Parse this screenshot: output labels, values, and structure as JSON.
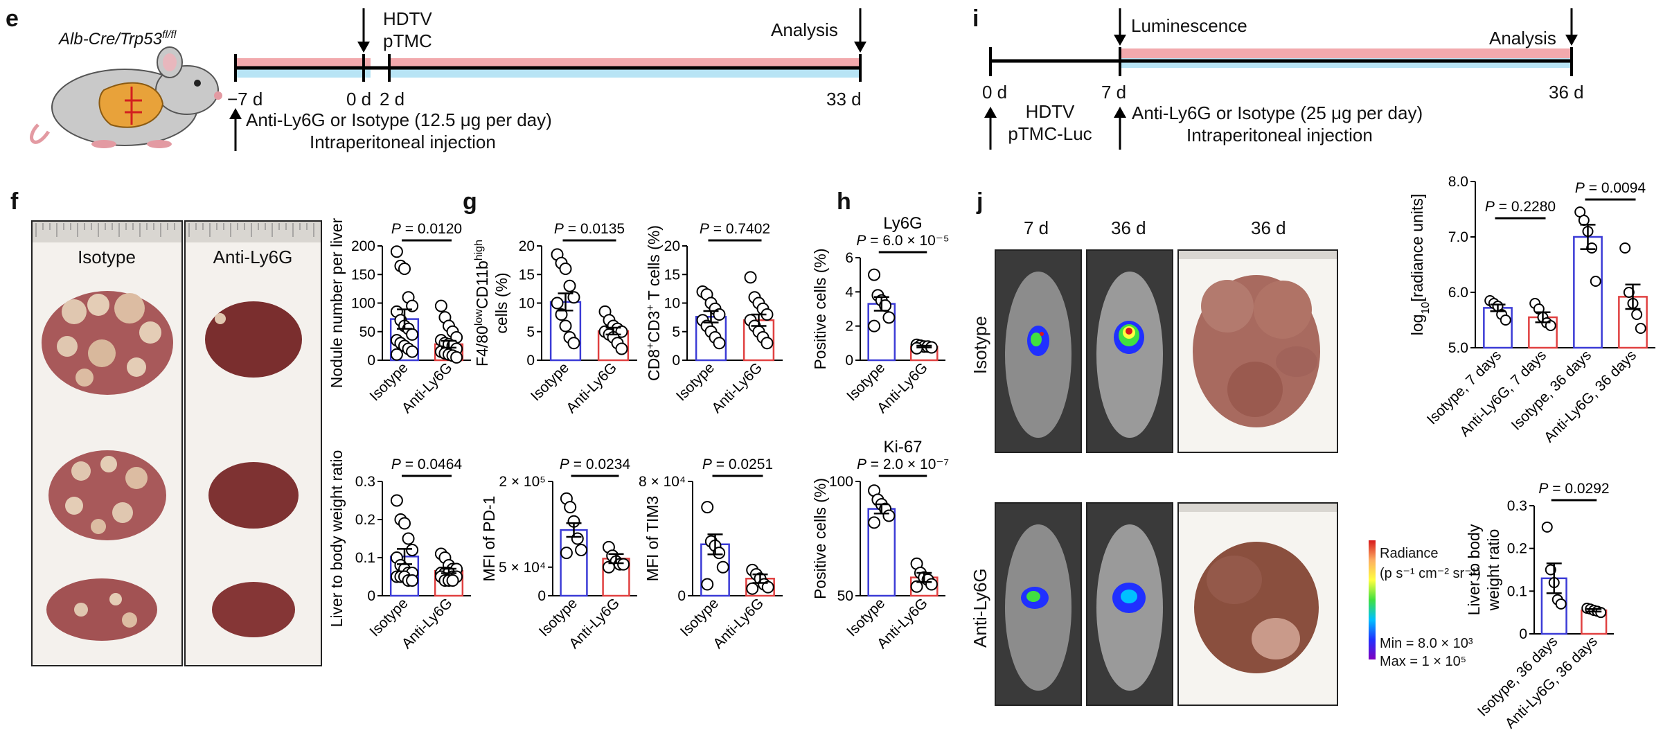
{
  "panels": {
    "e": {
      "letter": "e",
      "mouse_label": "Alb-Cre/Trp53",
      "mouse_label_sup": "fl/fl",
      "event_top": [
        "HDTV",
        "pTMC"
      ],
      "analysis": "Analysis",
      "ticks": [
        "−7 d",
        "0 d",
        "2 d",
        "33 d"
      ],
      "treatment": "Anti-Ly6G or Isotype (12.5 μg per day)",
      "route": "Intraperitoneal injection"
    },
    "i": {
      "letter": "i",
      "luminescence": "Luminescence",
      "analysis": "Analysis",
      "ticks": [
        "0 d",
        "7 d",
        "36 d"
      ],
      "event_bottom": [
        "HDTV",
        "pTMC-Luc"
      ],
      "treatment": "Anti-Ly6G or Isotype (25 μg per day)",
      "route": "Intraperitoneal injection"
    },
    "f": {
      "letter": "f",
      "photo_labels": [
        "Isotype",
        "Anti-Ly6G"
      ]
    },
    "g": {
      "letter": "g"
    },
    "h": {
      "letter": "h"
    },
    "j": {
      "letter": "j",
      "col_labels": [
        "7 d",
        "36 d",
        "36 d"
      ],
      "row_labels": [
        "Isotype",
        "Anti-Ly6G"
      ],
      "colorbar": {
        "title": "Radiance",
        "unit": "(p s⁻¹ cm⁻² sr⁻¹)",
        "min": "Min = 8.0 × 10³",
        "max": "Max = 1 × 10⁵",
        "colors": [
          "#d7191c",
          "#fdae61",
          "#ffff40",
          "#40e040",
          "#00c0ff",
          "#2030ff",
          "#8000c0"
        ]
      }
    }
  },
  "colors": {
    "isotype": "#3b3bd6",
    "anti": "#e04040"
  },
  "chart_data": [
    {
      "id": "f-nodules",
      "type": "bar",
      "categories": [
        "Isotype",
        "Anti-Ly6G"
      ],
      "ylabel": "Nodule number per liver",
      "ylim": [
        0,
        200
      ],
      "yticks": [
        "0",
        "50",
        "100",
        "150",
        "200"
      ],
      "values": [
        72,
        28
      ],
      "sem": [
        17,
        6
      ],
      "points": [
        [
          190,
          165,
          160,
          110,
          95,
          85,
          70,
          60,
          55,
          45,
          35,
          30,
          25,
          20,
          15,
          10
        ],
        [
          95,
          75,
          60,
          50,
          40,
          35,
          30,
          28,
          25,
          20,
          15,
          12,
          10,
          8,
          5
        ]
      ],
      "p_label": "P = 0.0120"
    },
    {
      "id": "f-ratio",
      "type": "bar",
      "categories": [
        "Isotype",
        "Anti-Ly6G"
      ],
      "ylabel": "Liver to body weight ratio",
      "ylim": [
        0,
        0.3
      ],
      "yticks": [
        "0",
        "0.1",
        "0.2",
        "0.3"
      ],
      "values": [
        0.103,
        0.065
      ],
      "sem": [
        0.02,
        0.006
      ],
      "points": [
        [
          0.25,
          0.2,
          0.19,
          0.15,
          0.12,
          0.1,
          0.08,
          0.07,
          0.06,
          0.06,
          0.05,
          0.05,
          0.05,
          0.04,
          0.04
        ],
        [
          0.11,
          0.1,
          0.08,
          0.07,
          0.07,
          0.06,
          0.06,
          0.06,
          0.05,
          0.05,
          0.05,
          0.04,
          0.04,
          0.04
        ]
      ],
      "p_label": "P = 0.0464"
    },
    {
      "id": "g-f480",
      "type": "bar",
      "categories": [
        "Isotype",
        "Anti-Ly6G"
      ],
      "ylabel_html": "F4/80<tspan baseline-shift='super' font-size='16'>low</tspan>CD11b<tspan baseline-shift='super' font-size='16'>high</tspan>",
      "ylabel": "cells (%)",
      "ylim": [
        0,
        20
      ],
      "yticks": [
        "0",
        "5",
        "10",
        "15",
        "20"
      ],
      "values": [
        10.2,
        5.1
      ],
      "sem": [
        1.5,
        0.6
      ],
      "points": [
        [
          18.5,
          17,
          16,
          13,
          11,
          10,
          8,
          6,
          4,
          3
        ],
        [
          8.5,
          7,
          6,
          5.5,
          5,
          5,
          4.5,
          4,
          3,
          2
        ]
      ],
      "p_label": "P = 0.0135"
    },
    {
      "id": "g-cd8",
      "type": "bar",
      "categories": [
        "Isotype",
        "Anti-Ly6G"
      ],
      "ylabel_html": "CD8<tspan baseline-shift='super' font-size='16'>+</tspan>CD3<tspan baseline-shift='super' font-size='16'>+</tspan> T cells (%)",
      "ylabel": "",
      "ylim": [
        0,
        20
      ],
      "yticks": [
        "0",
        "5",
        "10",
        "15",
        "20"
      ],
      "values": [
        7.6,
        7.0
      ],
      "sem": [
        1.0,
        1.0
      ],
      "points": [
        [
          12,
          11.5,
          10,
          9,
          8,
          7,
          6,
          5,
          4,
          3
        ],
        [
          14.5,
          11,
          10,
          9,
          8,
          7,
          6,
          5,
          4,
          3
        ]
      ],
      "p_label": "P = 0.7402"
    },
    {
      "id": "g-pd1",
      "type": "bar",
      "categories": [
        "Isotype",
        "Anti-Ly6G"
      ],
      "ylabel": "MFI of PD-1",
      "ylim": [
        0,
        200000
      ],
      "yticks_custom": [
        {
          "v": 0,
          "t": "0"
        },
        {
          "v": 50000,
          "t": "5 × 10⁴"
        },
        {
          "v": 200000,
          "t": "2 × 10⁵"
        }
      ],
      "values": [
        115000,
        65000
      ],
      "sem": [
        12000,
        8000
      ],
      "points": [
        [
          170000,
          155000,
          130000,
          100000,
          80000,
          75000
        ],
        [
          85000,
          70000,
          60000,
          55000,
          55000,
          50000
        ]
      ],
      "p_label": "P = 0.0234"
    },
    {
      "id": "g-tim3",
      "type": "bar",
      "categories": [
        "Isotype",
        "Anti-Ly6G"
      ],
      "ylabel": "MFI of TIM3",
      "ylim": [
        0,
        80000
      ],
      "yticks_custom": [
        {
          "v": 0,
          "t": "0"
        },
        {
          "v": 80000,
          "t": "8 × 10⁴"
        }
      ],
      "values": [
        36000,
        12000
      ],
      "sem": [
        7000,
        3000
      ],
      "points": [
        [
          62000,
          38000,
          35000,
          30000,
          20000,
          8000
        ],
        [
          18000,
          15000,
          12000,
          8000,
          6000,
          5000
        ]
      ],
      "p_label": "P = 0.0251"
    },
    {
      "id": "h-ly6g",
      "type": "bar",
      "title": "Ly6G",
      "categories": [
        "Isotype",
        "Anti-Ly6G"
      ],
      "ylabel": "Positive cells (%)",
      "ylim": [
        0,
        6
      ],
      "yticks": [
        "0",
        "2",
        "4",
        "6"
      ],
      "values": [
        3.3,
        0.8
      ],
      "sem": [
        0.4,
        0.05
      ],
      "points": [
        [
          5.0,
          3.8,
          3.5,
          3.2,
          2.5,
          2.0
        ],
        [
          0.9,
          0.85,
          0.8,
          0.8,
          0.75,
          0.7
        ]
      ],
      "p_label": "P = 6.0 × 10⁻⁵"
    },
    {
      "id": "h-ki67",
      "type": "bar",
      "title": "Ki-67",
      "categories": [
        "Isotype",
        "Anti-Ly6G"
      ],
      "ylabel": "Positive cells (%)",
      "ylim": [
        50,
        100
      ],
      "yticks": [
        "50",
        "100"
      ],
      "values": [
        88,
        58
      ],
      "sem": [
        2,
        2
      ],
      "points": [
        [
          96,
          92,
          90,
          88,
          85,
          82
        ],
        [
          64,
          60,
          58,
          57,
          55,
          54
        ]
      ],
      "p_label": "P = 2.0 × 10⁻⁷"
    },
    {
      "id": "j-radiance",
      "type": "bar",
      "categories": [
        "Isotype, 7 days",
        "Anti-Ly6G, 7 days",
        "Isotype, 36 days",
        "Anti-Ly6G, 36 days"
      ],
      "ylabel_html": "log<tspan baseline-shift='sub' font-size='16'>10</tspan>[radiance units]",
      "ylabel": "",
      "ylim": [
        5.0,
        8.0
      ],
      "yticks": [
        "5.0",
        "6.0",
        "7.0",
        "8.0"
      ],
      "values": [
        5.72,
        5.55,
        7.0,
        5.92
      ],
      "sem": [
        0.06,
        0.09,
        0.22,
        0.22
      ],
      "points": [
        [
          5.85,
          5.8,
          5.75,
          5.6,
          5.5
        ],
        [
          5.8,
          5.7,
          5.55,
          5.45,
          5.4
        ],
        [
          7.45,
          7.3,
          7.1,
          6.8,
          6.2
        ],
        [
          6.8,
          6.0,
          5.8,
          5.6,
          5.35
        ]
      ],
      "p_labels": [
        {
          "text": "P = 0.2280",
          "pair": [
            0,
            1
          ]
        },
        {
          "text": "P = 0.0094",
          "pair": [
            2,
            3
          ]
        }
      ]
    },
    {
      "id": "j-ratio",
      "type": "bar",
      "categories": [
        "Isotype, 36 days",
        "Anti-Ly6G, 36 days"
      ],
      "ylabel": "Liver to body",
      "ylabel2": "weight ratio",
      "ylim": [
        0,
        0.3
      ],
      "yticks": [
        "0",
        "0.1",
        "0.2",
        "0.3"
      ],
      "values": [
        0.13,
        0.055
      ],
      "sem": [
        0.035,
        0.003
      ],
      "points": [
        [
          0.25,
          0.15,
          0.12,
          0.08,
          0.07
        ],
        [
          0.06,
          0.058,
          0.055,
          0.053,
          0.05
        ]
      ],
      "p_label": "P = 0.0292"
    }
  ]
}
